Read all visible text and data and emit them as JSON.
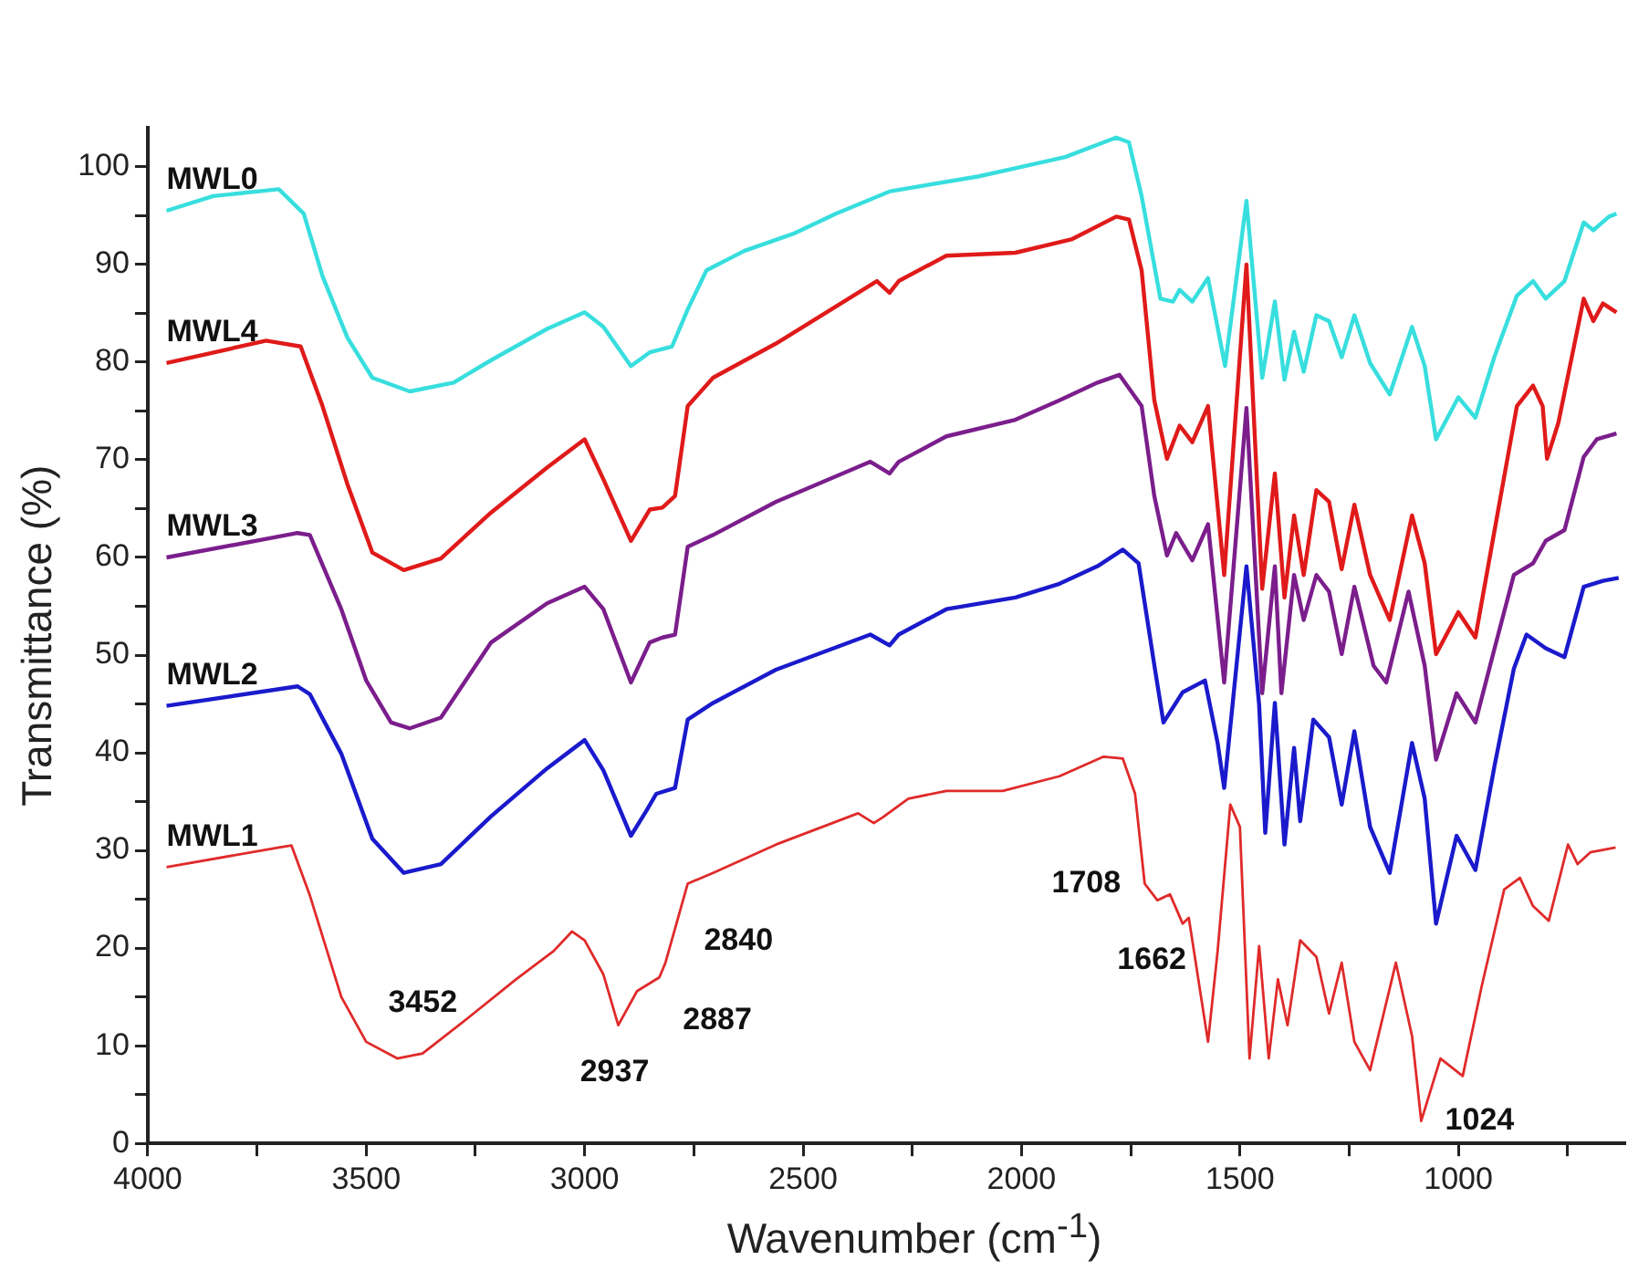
{
  "chart_data": {
    "type": "line",
    "xlabel": "Wavenumber (cm$^{-1}$)",
    "ylabel": "Transmittance (%)",
    "xlim": [
      4000,
      620
    ],
    "ylim": [
      0,
      104
    ],
    "xticks": [
      4000,
      {
        "value": 3750,
        "label": null
      },
      3500,
      {
        "value": 3250,
        "label": null
      },
      3000,
      {
        "value": 2750,
        "label": null
      },
      2500,
      {
        "value": 2250,
        "label": null
      },
      2000,
      {
        "value": 1750,
        "label": null
      },
      1500,
      {
        "value": 1250,
        "label": null
      },
      1000,
      {
        "value": 750,
        "label": null
      }
    ],
    "yticks": [
      0,
      {
        "value": 5,
        "label": null
      },
      10,
      {
        "value": 15,
        "label": null
      },
      20,
      {
        "value": 25,
        "label": null
      },
      30,
      {
        "value": 35,
        "label": null
      },
      40,
      {
        "value": 45,
        "label": null
      },
      50,
      {
        "value": 55,
        "label": null
      },
      60,
      {
        "value": 65,
        "label": null
      },
      70,
      {
        "value": 75,
        "label": null
      },
      80,
      {
        "value": 85,
        "label": null
      },
      90,
      {
        "value": 95,
        "label": null
      },
      100
    ],
    "grid": false,
    "legend": false,
    "marker": "none",
    "line_style": "solid",
    "series": [
      {
        "name": "MWL0",
        "color": "#38dede",
        "x": [
          3957,
          3850,
          3700,
          3643,
          3600,
          3543,
          3486,
          3400,
          3300,
          3214,
          3086,
          3000,
          2957,
          2894,
          2851,
          2800,
          2764,
          2721,
          2634,
          2519,
          2425,
          2300,
          2100,
          2000,
          1900,
          1783,
          1754,
          1725,
          1682,
          1653,
          1638,
          1609,
          1573,
          1534,
          1485,
          1449,
          1420,
          1398,
          1376,
          1354,
          1325,
          1296,
          1267,
          1238,
          1202,
          1157,
          1106,
          1077,
          1051,
          1000,
          961,
          917,
          866,
          829,
          800,
          757,
          713,
          691,
          655,
          638
        ],
        "values": [
          95.5,
          97,
          97.7,
          95.2,
          88.8,
          82.5,
          78.4,
          77,
          77.9,
          80.2,
          83.4,
          85.1,
          83.6,
          79.6,
          81,
          81.6,
          85.4,
          89.4,
          91.4,
          93.2,
          95.2,
          97.5,
          99,
          100,
          101,
          103,
          102.5,
          97,
          86.5,
          86.2,
          87.4,
          86.2,
          88.6,
          79.6,
          96.5,
          78.4,
          86.2,
          78.2,
          83.1,
          79,
          84.8,
          84.2,
          80.5,
          84.8,
          79.9,
          76.7,
          83.6,
          79.6,
          72.1,
          76.4,
          74.3,
          80.6,
          86.8,
          88.3,
          86.5,
          88.3,
          94.3,
          93.5,
          94.9,
          95.2
        ]
      },
      {
        "name": "MWL4",
        "color": "#e01a1a",
        "x": [
          3957,
          3729,
          3650,
          3600,
          3543,
          3486,
          3414,
          3329,
          3214,
          3086,
          3000,
          2957,
          2894,
          2851,
          2822,
          2793,
          2764,
          2706,
          2562,
          2331,
          2302,
          2281,
          2172,
          2014,
          1884,
          1783,
          1754,
          1725,
          1696,
          1667,
          1638,
          1609,
          1573,
          1536,
          1485,
          1449,
          1420,
          1398,
          1376,
          1354,
          1325,
          1296,
          1267,
          1238,
          1202,
          1157,
          1106,
          1077,
          1051,
          1000,
          961,
          917,
          866,
          829,
          807,
          797,
          771,
          713,
          691,
          669,
          638
        ],
        "values": [
          79.9,
          82.2,
          81.6,
          75.5,
          67.5,
          60.5,
          58.7,
          59.9,
          64.6,
          69.2,
          72.1,
          68,
          61.7,
          64.9,
          65.1,
          66.3,
          75.5,
          78.4,
          81.9,
          88.3,
          87.1,
          88.3,
          90.9,
          91.2,
          92.6,
          94.9,
          94.6,
          89.4,
          76.1,
          70.1,
          73.5,
          71.8,
          75.5,
          58.2,
          90,
          56.8,
          68.6,
          55.9,
          64.3,
          58.2,
          66.9,
          65.7,
          58.8,
          65.4,
          58.2,
          53.6,
          64.3,
          59.4,
          50.1,
          54.4,
          51.8,
          62.8,
          75.5,
          77.6,
          75.5,
          70.1,
          73.8,
          86.5,
          84.2,
          86,
          85.1
        ]
      },
      {
        "name": "MWL3",
        "color": "#7b1e8c",
        "x": [
          3957,
          3657,
          3629,
          3557,
          3500,
          3443,
          3400,
          3329,
          3214,
          3086,
          3000,
          2957,
          2894,
          2851,
          2822,
          2793,
          2764,
          2706,
          2562,
          2346,
          2302,
          2281,
          2172,
          2014,
          1913,
          1826,
          1776,
          1725,
          1696,
          1667,
          1646,
          1609,
          1573,
          1536,
          1485,
          1449,
          1420,
          1405,
          1376,
          1354,
          1325,
          1296,
          1267,
          1238,
          1194,
          1165,
          1114,
          1077,
          1051,
          1004,
          961,
          917,
          873,
          829,
          800,
          757,
          713,
          683,
          638
        ],
        "values": [
          60,
          62.5,
          62.3,
          54.7,
          47.4,
          43.1,
          42.5,
          43.6,
          51.3,
          55.3,
          57,
          54.7,
          47.2,
          51.3,
          51.8,
          52.1,
          61.1,
          62.3,
          65.7,
          69.8,
          68.6,
          69.8,
          72.4,
          74.1,
          76.1,
          77.9,
          78.7,
          75.5,
          66.3,
          60.2,
          62.5,
          59.7,
          63.4,
          47.2,
          75.3,
          46.1,
          59.1,
          46.1,
          58.2,
          53.6,
          58.2,
          56.5,
          50.1,
          57,
          48.9,
          47.2,
          56.5,
          48.9,
          39.3,
          46.1,
          43.1,
          50.7,
          58.2,
          59.4,
          61.7,
          62.8,
          70.3,
          72.1,
          72.7
        ]
      },
      {
        "name": "MWL2",
        "color": "#1a1acc",
        "x": [
          3957,
          3657,
          3629,
          3557,
          3486,
          3414,
          3329,
          3214,
          3086,
          3000,
          2957,
          2894,
          2858,
          2836,
          2793,
          2764,
          2706,
          2562,
          2346,
          2302,
          2281,
          2172,
          2014,
          1913,
          1826,
          1768,
          1732,
          1696,
          1675,
          1631,
          1580,
          1551,
          1536,
          1485,
          1456,
          1442,
          1420,
          1398,
          1376,
          1362,
          1332,
          1296,
          1267,
          1238,
          1202,
          1157,
          1106,
          1077,
          1051,
          1004,
          961,
          917,
          873,
          844,
          800,
          757,
          713,
          669,
          633
        ],
        "values": [
          44.8,
          46.8,
          46,
          39.9,
          31.2,
          27.7,
          28.6,
          33.5,
          38.4,
          41.3,
          38.2,
          31.5,
          34.1,
          35.8,
          36.4,
          43.4,
          45.1,
          48.5,
          52.1,
          51,
          52.1,
          54.7,
          55.9,
          57.3,
          59.1,
          60.8,
          59.4,
          49,
          43.1,
          46.2,
          47.4,
          41,
          36.4,
          59.1,
          44.9,
          31.8,
          45.1,
          30.6,
          40.5,
          33,
          43.4,
          41.6,
          34.7,
          42.2,
          32.4,
          27.7,
          41,
          35.3,
          22.5,
          31.5,
          28,
          38.7,
          48.6,
          52.1,
          50.7,
          49.8,
          57,
          57.6,
          57.9
        ]
      },
      {
        "name": "MWL1",
        "color": "#e02a2a",
        "x": [
          3957,
          3700,
          3671,
          3629,
          3557,
          3500,
          3429,
          3371,
          3271,
          3157,
          3071,
          3029,
          3000,
          2957,
          2923,
          2880,
          2829,
          2815,
          2764,
          2706,
          2562,
          2374,
          2338,
          2317,
          2259,
          2172,
          2043,
          1913,
          1812,
          1768,
          1740,
          1718,
          1689,
          1660,
          1631,
          1617,
          1573,
          1551,
          1522,
          1500,
          1478,
          1456,
          1434,
          1413,
          1391,
          1362,
          1325,
          1296,
          1267,
          1238,
          1202,
          1143,
          1106,
          1085,
          1041,
          990,
          946,
          895,
          859,
          829,
          793,
          749,
          727,
          698,
          640
        ],
        "values": [
          28.3,
          30.3,
          30.5,
          25.4,
          15,
          10.4,
          8.7,
          9.2,
          12.7,
          16.8,
          19.7,
          21.7,
          20.8,
          17.3,
          12.1,
          15.6,
          17,
          18.5,
          26.6,
          27.7,
          30.6,
          33.8,
          32.8,
          33.4,
          35.3,
          36.1,
          36.1,
          37.6,
          39.6,
          39.4,
          35.8,
          26.6,
          24.9,
          25.5,
          22.5,
          23.1,
          10.4,
          19.7,
          34.7,
          32.4,
          8.7,
          20.2,
          8.7,
          16.8,
          12.1,
          20.8,
          19.1,
          13.3,
          18.5,
          10.4,
          7.5,
          18.5,
          11,
          2.3,
          8.7,
          6.9,
          16.2,
          26,
          27.2,
          24.3,
          22.8,
          30.6,
          28.6,
          29.8,
          30.3
        ]
      }
    ],
    "annotations": [
      {
        "text": "3452",
        "x": 3429,
        "y": 8.7
      },
      {
        "text": "2937",
        "x": 2923,
        "y": 12.1
      },
      {
        "text": "2887",
        "x": 2880,
        "y": 15.6
      },
      {
        "text": "2840",
        "x": 2815,
        "y": 18.5
      },
      {
        "text": "1708",
        "x": 1718,
        "y": 26.6
      },
      {
        "text": "1662",
        "x": 1660,
        "y": 25.5
      },
      {
        "text": "1024",
        "x": 1085,
        "y": 2.3
      }
    ]
  }
}
